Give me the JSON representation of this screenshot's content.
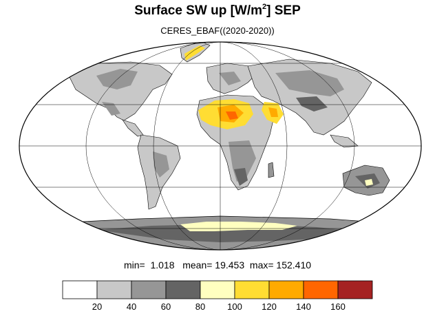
{
  "title": {
    "main": "Surface SW up [W/m",
    "sup": "2",
    "tail": "]  SEP"
  },
  "subtitle": "CERES_EBAF((2020-2020))",
  "stats": {
    "min_label": "min=",
    "min": "1.018",
    "mean_label": "mean=",
    "mean": "19.453",
    "max_label": "max=",
    "max": "152.410"
  },
  "colorbar": {
    "colors": [
      "#ffffff",
      "#c8c8c8",
      "#969696",
      "#646464",
      "#ffffc0",
      "#ffdd33",
      "#ffaa00",
      "#ff6600",
      "#a52222"
    ],
    "labels": [
      "20",
      "40",
      "60",
      "80",
      "100",
      "120",
      "140",
      "160"
    ]
  },
  "map_fill_colors": {
    "ocean": "#ffffff",
    "land_low": "#c8c8c8",
    "land_mid": "#969696",
    "land_dark": "#646464",
    "desert_light": "#ffffc0",
    "desert_yellow": "#ffdd33",
    "desert_orange": "#ffaa00",
    "desert_red": "#ff6600"
  }
}
